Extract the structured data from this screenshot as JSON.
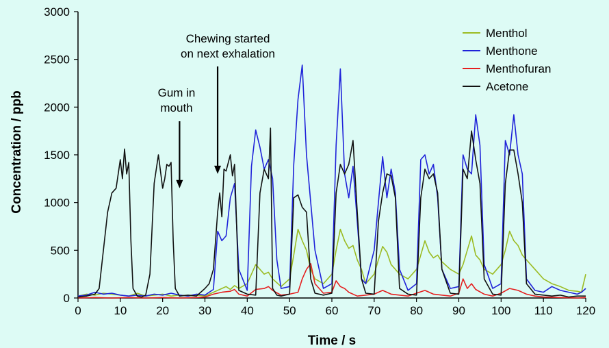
{
  "chart_data": {
    "type": "line",
    "title": "",
    "xlabel": "Time / s",
    "ylabel": "Concentration / ppb",
    "xlim": [
      0,
      120
    ],
    "ylim": [
      0,
      3000
    ],
    "xticks": [
      0,
      10,
      20,
      30,
      40,
      50,
      60,
      70,
      80,
      90,
      100,
      110,
      120
    ],
    "yticks": [
      0,
      500,
      1000,
      1500,
      2000,
      2500,
      3000
    ],
    "grid": false,
    "legend_position": "top-right",
    "series": [
      {
        "name": "Menthol",
        "color": "#9bbb22",
        "x": [
          0,
          2,
          4,
          6,
          8,
          10,
          12,
          14,
          16,
          18,
          20,
          22,
          24,
          26,
          28,
          30,
          32,
          33,
          34,
          35,
          36,
          37,
          38,
          40,
          41,
          42,
          43,
          44,
          45,
          46,
          47,
          48,
          50,
          51,
          52,
          53,
          54,
          55,
          56,
          58,
          60,
          61,
          62,
          63,
          64,
          65,
          66,
          67,
          68,
          70,
          71,
          72,
          73,
          74,
          75,
          76,
          78,
          80,
          81,
          82,
          83,
          84,
          85,
          86,
          88,
          90,
          91,
          92,
          93,
          94,
          95,
          96,
          98,
          100,
          101,
          102,
          103,
          104,
          105,
          106,
          108,
          110,
          112,
          114,
          116,
          118,
          119,
          120
        ],
        "y": [
          20,
          40,
          30,
          50,
          40,
          30,
          20,
          50,
          20,
          30,
          40,
          20,
          30,
          20,
          30,
          20,
          60,
          80,
          100,
          120,
          90,
          130,
          100,
          150,
          250,
          350,
          300,
          250,
          270,
          200,
          160,
          120,
          200,
          450,
          720,
          600,
          500,
          300,
          200,
          150,
          250,
          500,
          720,
          600,
          520,
          550,
          400,
          300,
          150,
          250,
          400,
          540,
          480,
          350,
          300,
          250,
          200,
          300,
          450,
          600,
          480,
          420,
          450,
          380,
          300,
          250,
          350,
          500,
          650,
          450,
          400,
          300,
          250,
          350,
          500,
          700,
          600,
          550,
          450,
          400,
          300,
          200,
          150,
          120,
          80,
          70,
          60,
          250
        ]
      },
      {
        "name": "Menthone",
        "color": "#1f22d9",
        "x": [
          0,
          2,
          4,
          6,
          8,
          10,
          12,
          14,
          16,
          18,
          20,
          22,
          24,
          26,
          28,
          30,
          32,
          33,
          34,
          35,
          36,
          37,
          38,
          40,
          41,
          42,
          43,
          44,
          45,
          46,
          47,
          48,
          50,
          51,
          52,
          53,
          54,
          55,
          56,
          58,
          60,
          61,
          62,
          63,
          64,
          65,
          66,
          67,
          68,
          70,
          71,
          72,
          73,
          74,
          75,
          76,
          78,
          80,
          81,
          82,
          83,
          84,
          85,
          86,
          88,
          90,
          91,
          92,
          93,
          94,
          95,
          96,
          98,
          100,
          101,
          102,
          103,
          104,
          105,
          106,
          108,
          110,
          112,
          114,
          116,
          118,
          119,
          120
        ],
        "y": [
          20,
          30,
          60,
          40,
          50,
          30,
          20,
          30,
          20,
          40,
          30,
          50,
          30,
          20,
          40,
          30,
          90,
          700,
          600,
          650,
          1050,
          1200,
          300,
          80,
          1380,
          1760,
          1580,
          1350,
          1450,
          1250,
          400,
          100,
          120,
          1400,
          2080,
          2440,
          1500,
          1000,
          500,
          100,
          150,
          1600,
          2400,
          1300,
          1050,
          1380,
          800,
          200,
          150,
          500,
          1000,
          1480,
          1050,
          1350,
          1100,
          300,
          80,
          150,
          1450,
          1500,
          1300,
          1400,
          1050,
          300,
          100,
          120,
          1500,
          1350,
          1300,
          1920,
          1600,
          350,
          100,
          150,
          1650,
          1500,
          1920,
          1500,
          1300,
          200,
          80,
          60,
          120,
          80,
          60,
          40,
          60,
          100
        ]
      },
      {
        "name": "Menthofuran",
        "color": "#e52020",
        "x": [
          0,
          4,
          8,
          12,
          16,
          20,
          24,
          28,
          30,
          32,
          34,
          36,
          37,
          38,
          40,
          42,
          44,
          45,
          46,
          48,
          50,
          52,
          53,
          54,
          55,
          56,
          58,
          60,
          61,
          62,
          63,
          64,
          66,
          68,
          70,
          72,
          74,
          76,
          78,
          80,
          82,
          84,
          86,
          88,
          90,
          91,
          92,
          93,
          94,
          96,
          98,
          100,
          102,
          104,
          106,
          108,
          110,
          114,
          118,
          120
        ],
        "y": [
          0,
          5,
          0,
          5,
          0,
          5,
          0,
          5,
          10,
          40,
          60,
          70,
          90,
          40,
          20,
          90,
          100,
          120,
          80,
          30,
          40,
          60,
          200,
          300,
          360,
          150,
          50,
          60,
          180,
          120,
          100,
          60,
          20,
          30,
          40,
          80,
          40,
          30,
          20,
          50,
          80,
          40,
          30,
          20,
          50,
          200,
          100,
          150,
          90,
          40,
          20,
          50,
          100,
          80,
          40,
          20,
          10,
          5,
          0,
          5
        ]
      },
      {
        "name": "Acetone",
        "color": "#111111",
        "x": [
          0,
          2,
          4,
          5,
          6,
          7,
          8,
          9,
          10,
          10.5,
          11,
          11.5,
          12,
          12.5,
          13,
          14,
          15,
          16,
          17,
          18,
          19,
          20,
          20.5,
          21,
          21.5,
          22,
          22.5,
          23,
          24,
          26,
          28,
          30,
          31,
          32,
          33,
          33.5,
          34,
          34.5,
          35,
          36,
          36.5,
          37,
          38,
          40,
          42,
          43,
          44,
          45,
          45.5,
          46,
          47,
          48,
          50,
          51,
          52,
          53,
          54,
          55,
          56,
          58,
          60,
          61,
          62,
          63,
          64,
          65,
          66,
          67,
          68,
          70,
          71,
          72,
          73,
          74,
          75,
          76,
          78,
          80,
          81,
          82,
          83,
          84,
          85,
          86,
          88,
          90,
          91,
          92,
          93,
          94,
          95,
          96,
          98,
          100,
          101,
          102,
          103,
          104,
          105,
          106,
          108,
          110,
          112,
          114,
          116,
          118,
          120
        ],
        "y": [
          10,
          20,
          40,
          100,
          500,
          900,
          1100,
          1150,
          1450,
          1250,
          1560,
          1300,
          1420,
          600,
          100,
          20,
          10,
          30,
          250,
          1200,
          1500,
          1150,
          1250,
          1400,
          1380,
          1420,
          600,
          100,
          20,
          30,
          20,
          100,
          150,
          300,
          900,
          1100,
          850,
          1350,
          1330,
          1500,
          1280,
          1400,
          80,
          40,
          30,
          1100,
          1350,
          1250,
          1780,
          100,
          30,
          20,
          40,
          1050,
          1080,
          950,
          900,
          200,
          50,
          30,
          50,
          1100,
          1400,
          1300,
          1400,
          1650,
          900,
          200,
          50,
          40,
          800,
          1100,
          1300,
          1280,
          1050,
          100,
          40,
          30,
          1050,
          1350,
          1250,
          1300,
          1100,
          300,
          50,
          40,
          1350,
          1250,
          1750,
          1450,
          1200,
          200,
          40,
          30,
          1200,
          1550,
          1550,
          1300,
          1000,
          150,
          40,
          30,
          20,
          30,
          10,
          20,
          20
        ]
      }
    ],
    "annotations": [
      {
        "id": "gum",
        "lines": [
          "Gum in",
          "mouth"
        ],
        "arrow_x": 24,
        "arrow_y": 1150
      },
      {
        "id": "chewing",
        "lines": [
          "Chewing started",
          "on next exhalation"
        ],
        "arrow_x": 33,
        "arrow_y": 1300
      }
    ]
  }
}
